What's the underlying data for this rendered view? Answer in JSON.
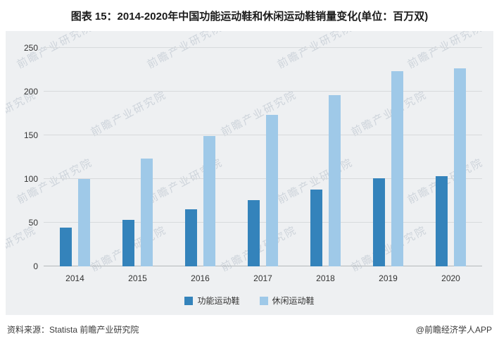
{
  "title": "图表 15：2014-2020年中国功能运动鞋和休闲运动鞋销量变化(单位：百万双)",
  "chart_data": {
    "type": "bar",
    "categories": [
      "2014",
      "2015",
      "2016",
      "2017",
      "2018",
      "2019",
      "2020"
    ],
    "series": [
      {
        "name": "功能运动鞋",
        "color": "#3483bb",
        "values": [
          44,
          53,
          65,
          76,
          88,
          101,
          103
        ]
      },
      {
        "name": "休闲运动鞋",
        "color": "#9fc9e8",
        "values": [
          100,
          123,
          149,
          173,
          196,
          223,
          227
        ]
      }
    ],
    "ylim": [
      0,
      250
    ],
    "yticks": [
      0,
      50,
      100,
      150,
      200,
      250
    ],
    "grid": true,
    "legend_position": "bottom",
    "xlabel": "",
    "ylabel": ""
  },
  "watermark": {
    "text": "前瞻产业研究院"
  },
  "footer": {
    "source": "资料来源：Statista 前瞻产业研究院",
    "credit": "@前瞻经济学人APP"
  }
}
